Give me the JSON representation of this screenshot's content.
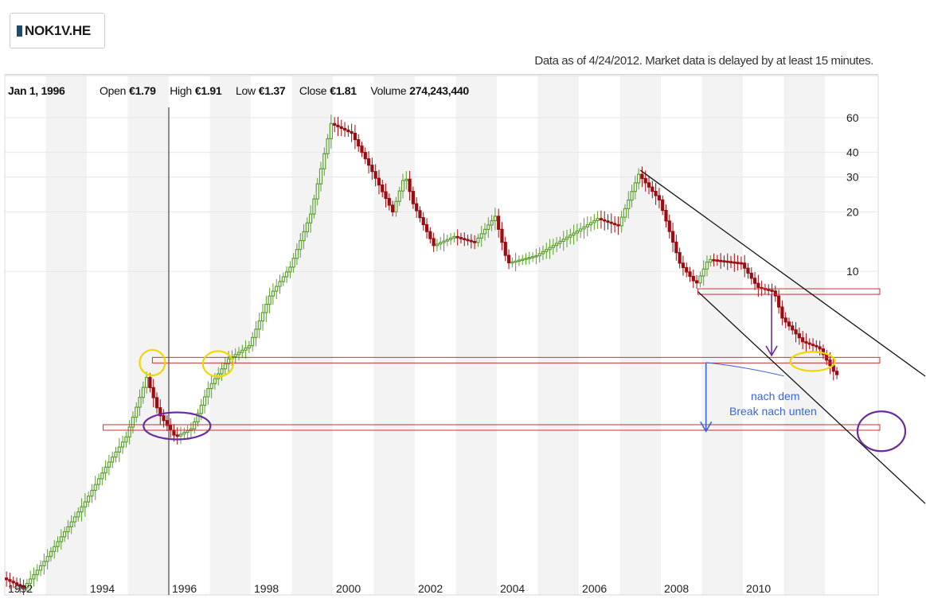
{
  "ticker": "NOK1V.HE",
  "delay_note": "Data as of 4/24/2012. Market data is delayed by at least 15 minutes.",
  "ohlc": {
    "date": "Jan 1, 1996",
    "open_label": "Open",
    "open_value": "€1.79",
    "high_label": "High",
    "high_value": "€1.91",
    "low_label": "Low",
    "low_value": "€1.37",
    "close_label": "Close",
    "close_value": "€1.81",
    "volume_label": "Volume",
    "volume_value": "274,243,440"
  },
  "colors": {
    "up": "#5aa02c",
    "down": "#9b0d12",
    "band": "#f3f3f3",
    "support_line": "#c83232",
    "trend_line": "#111111",
    "highlight_yellow": "#f2d600",
    "highlight_purple": "#6a2c9c",
    "annotation_blue": "#3a64d8"
  },
  "chart_data": {
    "type": "candlestick",
    "title": "",
    "xlabel": "",
    "ylabel": "",
    "y_scale": "log",
    "x_ticks": [
      "1992",
      "1994",
      "1996",
      "1998",
      "2000",
      "2002",
      "2004",
      "2006",
      "2008",
      "2010"
    ],
    "y_ticks": [
      10,
      20,
      30,
      40,
      60
    ],
    "xlim": [
      1992.0,
      2013.3
    ],
    "ylim": [
      0.23,
      98
    ],
    "grid": "alternating year bands",
    "price_path": [
      [
        1992.0,
        0.28
      ],
      [
        1992.5,
        0.25
      ],
      [
        1993.0,
        0.34
      ],
      [
        1993.5,
        0.48
      ],
      [
        1994.0,
        0.68
      ],
      [
        1994.5,
        1.02
      ],
      [
        1995.0,
        1.45
      ],
      [
        1995.5,
        2.9
      ],
      [
        1995.8,
        1.9
      ],
      [
        1996.2,
        1.45
      ],
      [
        1996.6,
        1.6
      ],
      [
        1997.0,
        2.55
      ],
      [
        1997.5,
        3.6
      ],
      [
        1998.0,
        4.2
      ],
      [
        1998.5,
        7.5
      ],
      [
        1999.0,
        10.5
      ],
      [
        1999.5,
        19.5
      ],
      [
        2000.0,
        56
      ],
      [
        2000.5,
        50
      ],
      [
        2001.0,
        32
      ],
      [
        2001.5,
        20
      ],
      [
        2001.8,
        31
      ],
      [
        2002.0,
        22
      ],
      [
        2002.5,
        13.5
      ],
      [
        2003.0,
        15
      ],
      [
        2003.5,
        14
      ],
      [
        2004.0,
        19
      ],
      [
        2004.3,
        11
      ],
      [
        2005.0,
        12
      ],
      [
        2006.0,
        16
      ],
      [
        2006.5,
        18.5
      ],
      [
        2007.0,
        17
      ],
      [
        2007.5,
        31
      ],
      [
        2008.0,
        23
      ],
      [
        2008.5,
        11
      ],
      [
        2008.9,
        8.6
      ],
      [
        2009.2,
        11.5
      ],
      [
        2010.0,
        11
      ],
      [
        2010.4,
        8.3
      ],
      [
        2010.8,
        7.9
      ],
      [
        2011.0,
        5.8
      ],
      [
        2011.5,
        4.4
      ],
      [
        2011.9,
        4.1
      ],
      [
        2012.3,
        3.0
      ]
    ],
    "support_levels": [
      7.9,
      3.55,
      1.62
    ],
    "trend_lines": [
      {
        "x1": 2007.5,
        "y1": 32.5,
        "x2": 2013.3,
        "y2": 4.4
      },
      {
        "x1": 2008.9,
        "y1": 7.9,
        "x2": 2013.3,
        "y2": 1.12
      }
    ],
    "annotations": [
      {
        "text_line1": "nach dem",
        "text_line2": "Break nach unten"
      }
    ]
  }
}
